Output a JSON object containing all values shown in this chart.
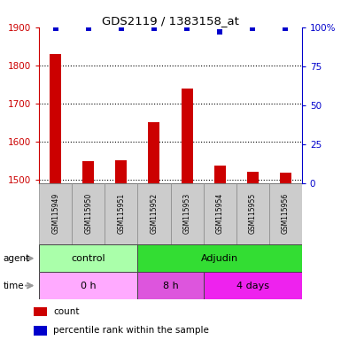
{
  "title": "GDS2119 / 1383158_at",
  "samples": [
    "GSM115949",
    "GSM115950",
    "GSM115951",
    "GSM115952",
    "GSM115953",
    "GSM115954",
    "GSM115955",
    "GSM115956"
  ],
  "counts": [
    1830,
    1550,
    1552,
    1650,
    1740,
    1538,
    1520,
    1518
  ],
  "percentile_ranks": [
    99,
    99,
    99,
    99,
    99,
    97,
    99,
    99
  ],
  "ylim_left": [
    1490,
    1900
  ],
  "ylim_right": [
    0,
    100
  ],
  "yticks_left": [
    1500,
    1600,
    1700,
    1800,
    1900
  ],
  "yticks_right": [
    0,
    25,
    50,
    75,
    100
  ],
  "agent_groups": [
    {
      "label": "control",
      "start": 0,
      "end": 3,
      "color": "#AAFFAA"
    },
    {
      "label": "Adjudin",
      "start": 3,
      "end": 8,
      "color": "#33DD33"
    }
  ],
  "time_groups": [
    {
      "label": "0 h",
      "start": 0,
      "end": 3,
      "color": "#FFAAFF"
    },
    {
      "label": "8 h",
      "start": 3,
      "end": 5,
      "color": "#DD55DD"
    },
    {
      "label": "4 days",
      "start": 5,
      "end": 8,
      "color": "#EE22EE"
    }
  ],
  "bar_color": "#CC0000",
  "dot_color": "#0000CC",
  "bar_bottom": 1490,
  "left_axis_color": "#CC0000",
  "right_axis_color": "#0000CC",
  "legend_items": [
    {
      "color": "#CC0000",
      "label": "count"
    },
    {
      "color": "#0000CC",
      "label": "percentile rank within the sample"
    }
  ],
  "sample_box_color": "#CCCCCC",
  "arrow_color": "#999999",
  "dot_pct_value": 97,
  "dot_size": 25
}
